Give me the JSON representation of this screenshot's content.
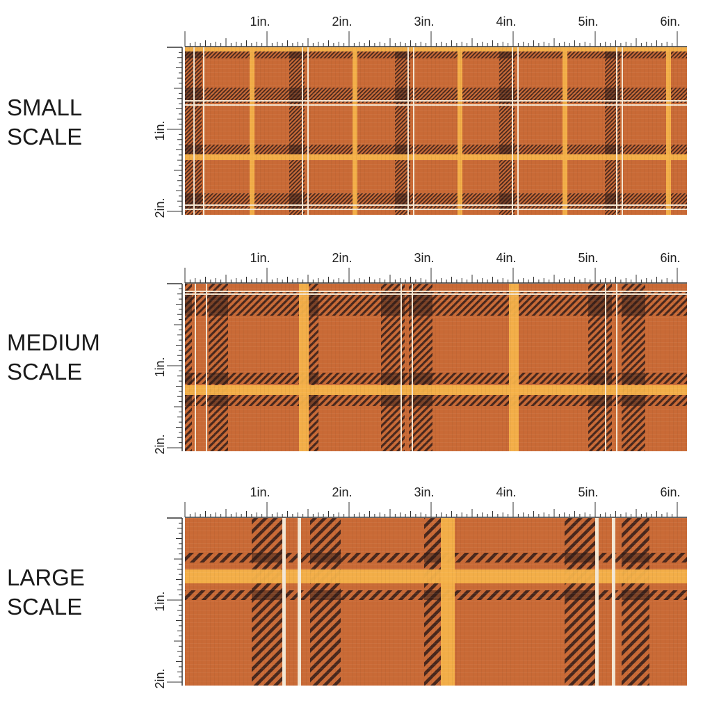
{
  "colors": {
    "base": "#c96a36",
    "stripe_dark": "#3a2019",
    "stripe_gold": "#f6b24a",
    "stripe_cream": "#f4e6d2"
  },
  "ruler_labels": {
    "top": [
      "1in.",
      "2in.",
      "3in.",
      "4in.",
      "5in.",
      "6in."
    ],
    "side": [
      "1in.",
      "2in."
    ]
  },
  "panels": [
    {
      "id": "small",
      "label_lines": [
        "SMALL",
        "SCALE"
      ]
    },
    {
      "id": "medium",
      "label_lines": [
        "MEDIUM",
        "SCALE"
      ]
    },
    {
      "id": "large",
      "label_lines": [
        "LARGE",
        "SCALE"
      ]
    }
  ]
}
